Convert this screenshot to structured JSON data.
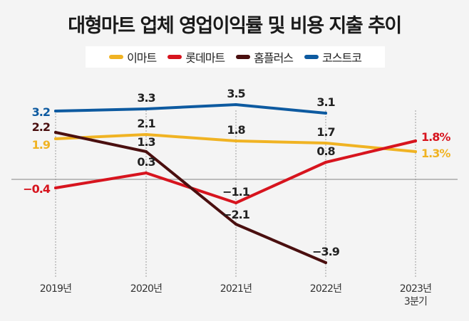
{
  "chart_data": {
    "type": "line",
    "title": "대형마트 업체 영업이익률 및 비용 지출 추이",
    "categories": [
      "2019년",
      "2020년",
      "2021년",
      "2022년",
      "2023년\n3분기"
    ],
    "ylim": [
      -3.9,
      3.5
    ],
    "grid": false,
    "legend_position": "top",
    "series": [
      {
        "name": "이마트",
        "color": "#f0b323",
        "values": [
          1.9,
          2.1,
          1.8,
          1.7,
          1.3
        ],
        "labels": [
          "1.9",
          "2.1",
          "1.8",
          "1.7",
          "1.3%"
        ]
      },
      {
        "name": "롯데마트",
        "color": "#d7141e",
        "values": [
          -0.4,
          0.3,
          -1.1,
          0.8,
          1.8
        ],
        "labels": [
          "-0.4",
          "0.3",
          "-1.1",
          "0.8",
          "1.8%"
        ]
      },
      {
        "name": "홈플러스",
        "color": "#4a0f0f",
        "values": [
          2.2,
          1.3,
          -2.1,
          -3.9,
          null
        ],
        "labels": [
          "2.2",
          "1.3",
          "-2.1",
          "-3.9",
          ""
        ]
      },
      {
        "name": "코스트코",
        "color": "#0d5aa0",
        "values": [
          3.2,
          3.3,
          3.5,
          3.1,
          null
        ],
        "labels": [
          "3.2",
          "3.3",
          "3.5",
          "3.1",
          ""
        ]
      }
    ]
  }
}
